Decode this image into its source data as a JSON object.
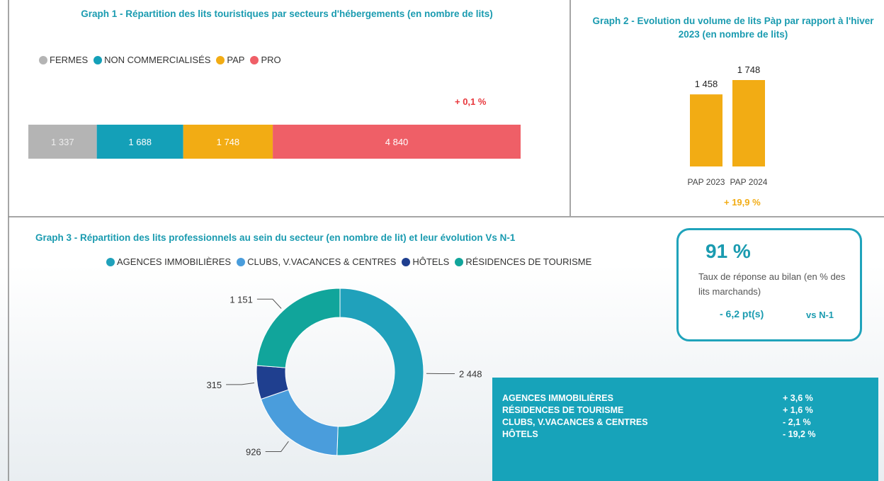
{
  "chart_data": [
    {
      "type": "stacked-bar",
      "title": "Graph 1 - Répartition des lits touristiques par secteurs d'hébergements (en nombre de lits)",
      "series": [
        {
          "name": "FERMES",
          "color": "#b4b4b4",
          "values": [
            1337
          ],
          "value_labels": [
            "1 337"
          ]
        },
        {
          "name": "NON COMMERCIALISÉS",
          "color": "#14a0b8",
          "values": [
            1688
          ],
          "value_labels": [
            "1 688"
          ]
        },
        {
          "name": "PAP",
          "color": "#f2ac14",
          "values": [
            1748
          ],
          "value_labels": [
            "1 748"
          ]
        },
        {
          "name": "PRO",
          "color": "#ef5f67",
          "values": [
            4840
          ],
          "value_labels": [
            "4 840"
          ]
        }
      ],
      "annotation": "+ 0,1 %",
      "annotation_color": "#e8383d"
    },
    {
      "type": "bar",
      "title": "Graph 2 - Evolution du volume de lits Pàp par rapport à l'hiver 2023 (en nombre de lits)",
      "categories": [
        "PAP 2023",
        "PAP 2024"
      ],
      "values": [
        1458,
        1748
      ],
      "value_labels": [
        "1 458",
        "1 748"
      ],
      "color": "#f2ac14",
      "annotation": "+ 19,9 %",
      "annotation_color": "#f2ac14"
    },
    {
      "type": "donut",
      "title": "Graph 3 - Répartition des lits professionnels au sein du secteur (en nombre de lit) et leur évolution Vs N-1",
      "categories": [
        "AGENCES IMMOBILIÈRES",
        "CLUBS, V.VACANCES & CENTRES",
        "HÔTELS",
        "RÉSIDENCES DE TOURISME"
      ],
      "values": [
        2448,
        926,
        315,
        1151
      ],
      "value_labels": [
        "2 448",
        "926",
        "315",
        "1 151"
      ],
      "colors": [
        "#20a1bb",
        "#4a9ddc",
        "#1f3f8f",
        "#11a59b"
      ]
    }
  ],
  "kpi": {
    "value": "91 %",
    "label": "Taux de réponse au bilan (en % des lits marchands)",
    "change": "- 6,2 pt(s)",
    "comparison": "vs N-1"
  },
  "evolution_table": {
    "rows": [
      [
        "AGENCES IMMOBILIÈRES",
        "+ 3,6 %"
      ],
      [
        "RÉSIDENCES DE TOURISME",
        "+ 1,6 %"
      ],
      [
        "CLUBS, V.VACANCES & CENTRES",
        "- 2,1 %"
      ],
      [
        "HÔTELS",
        "- 19,2 %"
      ]
    ]
  }
}
